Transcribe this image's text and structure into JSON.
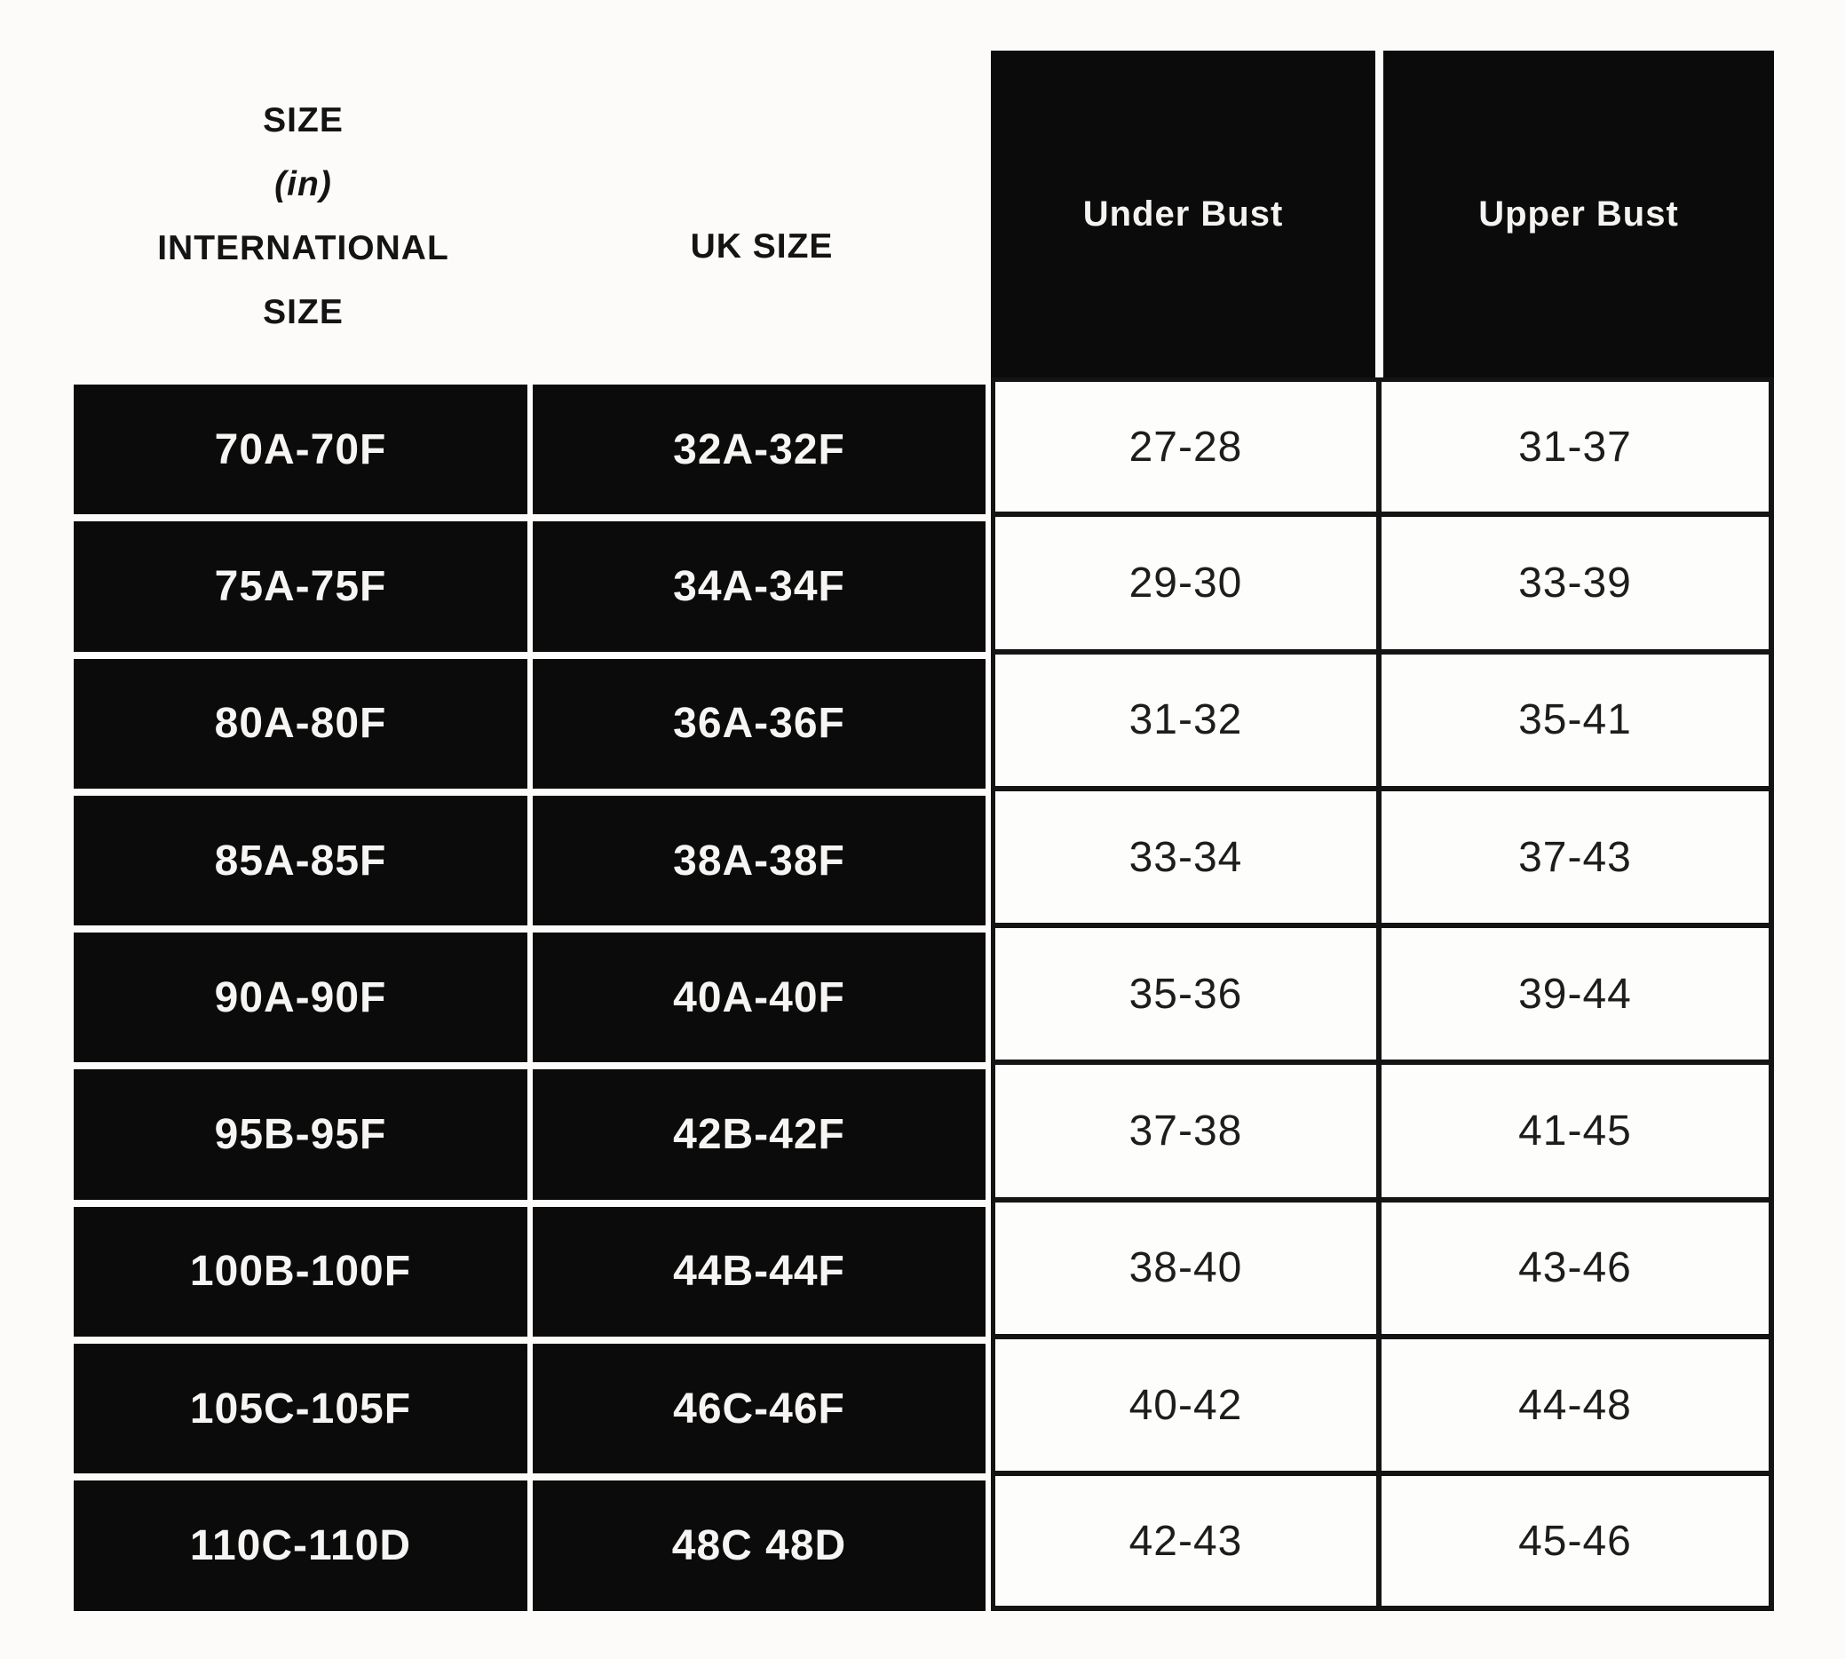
{
  "chart_data": {
    "type": "table",
    "columns": [
      "SIZE (in) INTERNATIONAL SIZE",
      "UK SIZE",
      "Under Bust",
      "Upper Bust"
    ],
    "rows": [
      [
        "70A-70F",
        "32A-32F",
        "27-28",
        "31-37"
      ],
      [
        "75A-75F",
        "34A-34F",
        "29-30",
        "33-39"
      ],
      [
        "80A-80F",
        "36A-36F",
        "31-32",
        "35-41"
      ],
      [
        "85A-85F",
        "38A-38F",
        "33-34",
        "37-43"
      ],
      [
        "90A-90F",
        "40A-40F",
        "35-36",
        "39-44"
      ],
      [
        "95B-95F",
        "42B-42F",
        "37-38",
        "41-45"
      ],
      [
        "100B-100F",
        "44B-44F",
        "38-40",
        "43-46"
      ],
      [
        "105C-105F",
        "46C-46F",
        "40-42",
        "44-48"
      ],
      [
        "110C-110D",
        "48C 48D",
        "42-43",
        "45-46"
      ]
    ]
  },
  "header": {
    "international_lines": [
      "SIZE",
      "(in)",
      "INTERNATIONAL",
      "SIZE"
    ],
    "uk": "UK SIZE",
    "under_bust": "Under Bust",
    "upper_bust": "Upper Bust"
  },
  "colors": {
    "background": "#fcfbf9",
    "cell_black": "#0b0b0b",
    "border": "#141414",
    "text_on_black": "#f6f5f3",
    "text_on_white": "#1d1d1b"
  }
}
